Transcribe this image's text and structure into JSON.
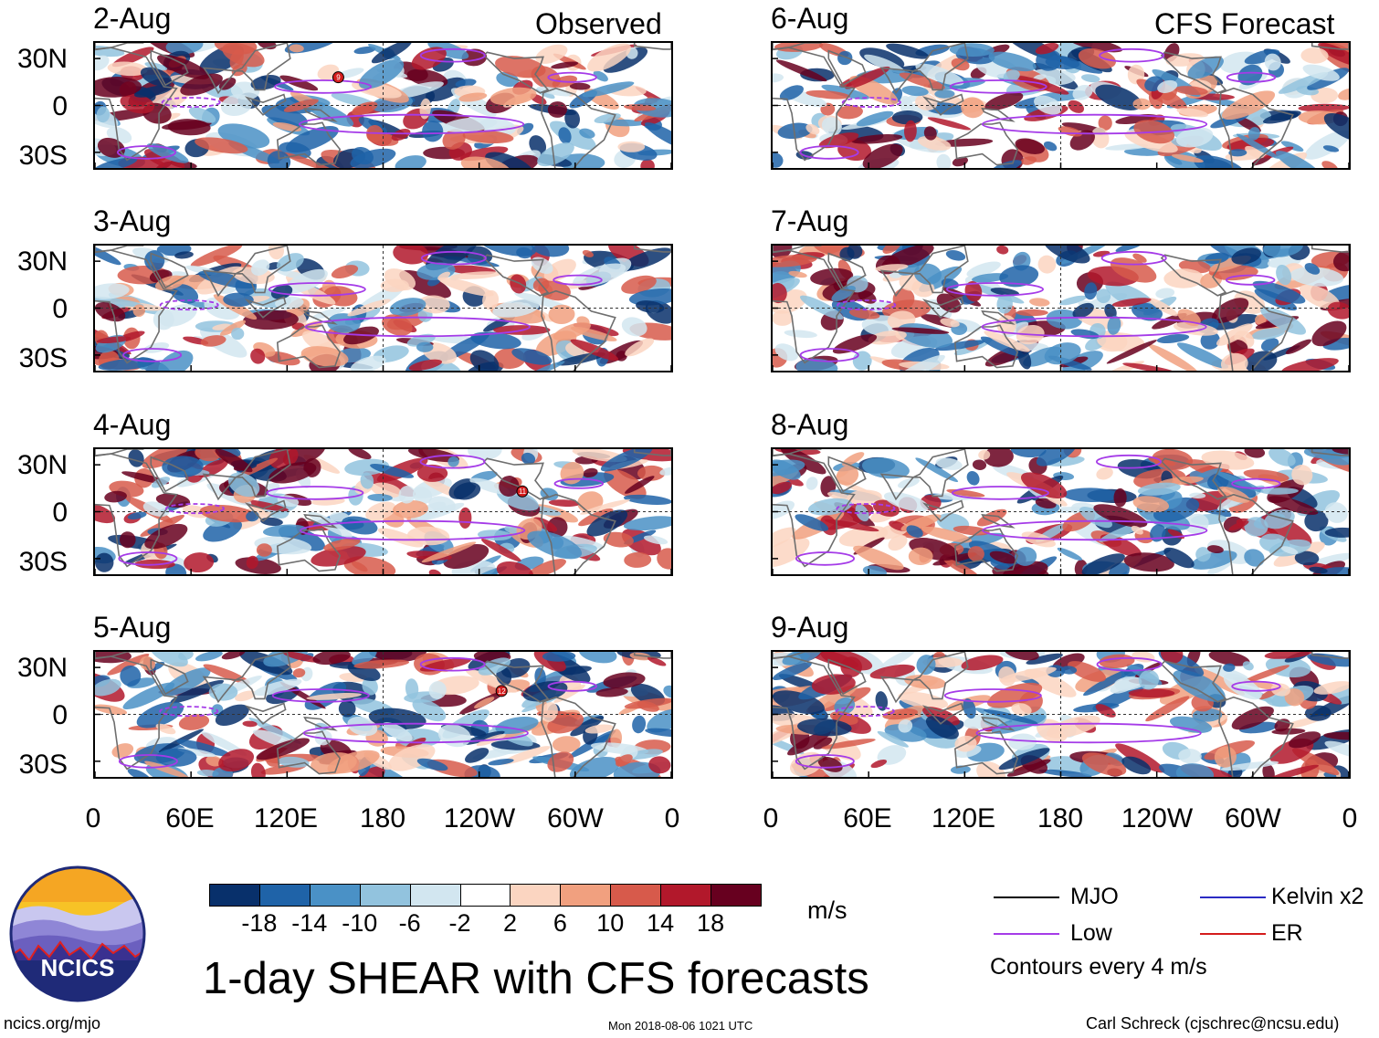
{
  "chart_data": {
    "type": "heatmap",
    "title": "1-day SHEAR with CFS forecasts",
    "observed_header": "Observed",
    "forecast_header": "CFS Forecast",
    "observed_dates": [
      "2-Aug",
      "3-Aug",
      "4-Aug",
      "5-Aug"
    ],
    "forecast_dates": [
      "6-Aug",
      "7-Aug",
      "8-Aug",
      "9-Aug"
    ],
    "y_ticks": [
      "30N",
      "0",
      "30S"
    ],
    "x_ticks": [
      "0",
      "60E",
      "120E",
      "180",
      "120W",
      "60W",
      "0"
    ],
    "lon_range": [
      0,
      360
    ],
    "lat_range": [
      -40,
      40
    ],
    "colorbar": {
      "unit": "m/s",
      "tick_labels": [
        "-18",
        "-14",
        "-10",
        "-6",
        "-2",
        "2",
        "6",
        "10",
        "14",
        "18"
      ],
      "colors": [
        "#08306b",
        "#1f63a8",
        "#4a91c6",
        "#92c3de",
        "#d2e6f0",
        "#ffffff",
        "#fbd5c1",
        "#f1a07f",
        "#d75a4b",
        "#b2182b",
        "#67001f"
      ]
    },
    "legend": {
      "items": [
        {
          "label": "MJO",
          "color": "#000000"
        },
        {
          "label": "Kelvin x2",
          "color": "#2b2bc4"
        },
        {
          "label": "Low",
          "color": "#a53be8"
        },
        {
          "label": "ER",
          "color": "#d41c1c"
        }
      ],
      "note": "Contours every 4 m/s"
    },
    "storm_markers": [
      {
        "date": "2-Aug",
        "label": "9"
      },
      {
        "date": "4-Aug",
        "label": "11"
      },
      {
        "date": "5-Aug",
        "label": "12"
      }
    ]
  },
  "logo": {
    "text": "NCICS"
  },
  "footer": {
    "left": "ncics.org/mjo",
    "center": "Mon 2018-08-06 1021 UTC",
    "right": "Carl Schreck (cjschrec@ncsu.edu)"
  }
}
